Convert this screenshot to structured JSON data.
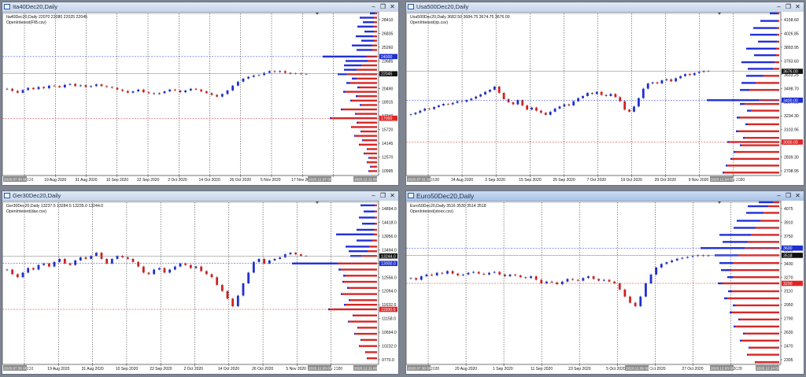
{
  "colors": {
    "bull": "#1f2fd1",
    "bear": "#d22020",
    "grid": "#222222",
    "wick": "#444444",
    "bid": "#2230d8",
    "ask": "#d62828"
  },
  "windows": [
    {
      "key": "ita",
      "title": "Ita40Dec20,Daily",
      "ohlc": "Ita40Dec20,Daily  22070 22080 22025 22045",
      "oi": "OpenInterest(FIB.csv)",
      "yaxis": [
        "28410",
        "26835",
        "25260",
        "23685",
        "22110",
        "20490",
        "18915",
        "17340",
        "15720",
        "14145",
        "12570",
        "10995"
      ],
      "marks": [
        {
          "text": "24000",
          "v": 24000,
          "type": "blue"
        },
        {
          "text": "22045",
          "v": 22045,
          "type": "black"
        },
        {
          "text": "17000",
          "v": 17000,
          "type": "red"
        }
      ],
      "xaxis": [
        "7 Aug 2020",
        "19 Aug 2020",
        "31 Aug 2020",
        "10 Sep 2020",
        "22 Sep 2020",
        "2 Oct 2020",
        "14 Oct 2020",
        "26 Oct 2020",
        "5 Nov 2020",
        "17 Nov 2020",
        "2"
      ],
      "axis_time_left": "2020.07.30 00:00",
      "axis_time_right": "2020.12.07 00:00",
      "axis_time_right2": "2020.12.11 00:00",
      "ylim": [
        10500,
        28900
      ],
      "closes": [
        20350,
        20100,
        19900,
        20200,
        20450,
        20300,
        20550,
        20400,
        20700,
        20650,
        20500,
        20800,
        20900,
        20650,
        20750,
        20550,
        20650,
        20850,
        20650,
        20550,
        20450,
        20250,
        20100,
        19900,
        20050,
        20250,
        19950,
        19850,
        19750,
        19850,
        20050,
        20250,
        20150,
        19950,
        20150,
        20350,
        20250,
        20050,
        19850,
        19650,
        19450,
        19750,
        20150,
        20700,
        21150,
        21500,
        21700,
        21850,
        21900,
        22150,
        22350,
        22250,
        22350,
        22150,
        22050,
        22100,
        22000,
        22045
      ],
      "oi_bars": [
        {
          "v": 28900,
          "bid": 6,
          "ask": 3
        },
        {
          "v": 28410,
          "bid": 18,
          "ask": 4
        },
        {
          "v": 27900,
          "bid": 14,
          "ask": 4
        },
        {
          "v": 27400,
          "bid": 20,
          "ask": 5
        },
        {
          "v": 26835,
          "bid": 12,
          "ask": 4
        },
        {
          "v": 26300,
          "bid": 22,
          "ask": 5
        },
        {
          "v": 25800,
          "bid": 16,
          "ask": 4
        },
        {
          "v": 25260,
          "bid": 26,
          "ask": 6
        },
        {
          "v": 24750,
          "bid": 20,
          "ask": 6
        },
        {
          "v": 24000,
          "bid": 55,
          "ask": 14
        },
        {
          "v": 23500,
          "bid": 28,
          "ask": 12
        },
        {
          "v": 23000,
          "bid": 22,
          "ask": 20
        },
        {
          "v": 22500,
          "bid": 16,
          "ask": 26
        },
        {
          "v": 22000,
          "bid": 12,
          "ask": 38
        },
        {
          "v": 21500,
          "bid": 6,
          "ask": 26
        },
        {
          "v": 21000,
          "bid": 5,
          "ask": 34
        },
        {
          "v": 20500,
          "bid": 3,
          "ask": 22
        },
        {
          "v": 20000,
          "bid": 3,
          "ask": 40
        },
        {
          "v": 19500,
          "bid": 3,
          "ask": 24
        },
        {
          "v": 19000,
          "bid": 2,
          "ask": 32
        },
        {
          "v": 18500,
          "bid": 2,
          "ask": 20
        },
        {
          "v": 18000,
          "bid": 2,
          "ask": 44
        },
        {
          "v": 17500,
          "bid": 2,
          "ask": 26
        },
        {
          "v": 17000,
          "bid": 2,
          "ask": 58
        },
        {
          "v": 16500,
          "bid": 2,
          "ask": 24
        },
        {
          "v": 16000,
          "bid": 1,
          "ask": 32
        },
        {
          "v": 15500,
          "bid": 1,
          "ask": 20
        },
        {
          "v": 15000,
          "bid": 1,
          "ask": 28
        },
        {
          "v": 14500,
          "bid": 1,
          "ask": 18
        },
        {
          "v": 14000,
          "bid": 1,
          "ask": 22
        },
        {
          "v": 13500,
          "bid": 1,
          "ask": 12
        },
        {
          "v": 13000,
          "bid": 1,
          "ask": 16
        },
        {
          "v": 12500,
          "bid": 1,
          "ask": 10
        },
        {
          "v": 12000,
          "bid": 1,
          "ask": 12
        },
        {
          "v": 11500,
          "bid": 1,
          "ask": 8
        },
        {
          "v": 11000,
          "bid": 1,
          "ask": 10
        }
      ]
    },
    {
      "key": "usa",
      "title": "Usa500Dec20,Daily",
      "ohlc": "Usa500Dec20,Daily  3682.50 3684.75 3674.75 3676.00",
      "oi": "OpenInterest(sp.csv)",
      "yaxis": [
        "4158.60",
        "4026.85",
        "3893.95",
        "3763.60",
        "3633.25",
        "3498.70",
        "3364.00",
        "3234.30",
        "3103.95",
        "2969.60",
        "2839.30",
        "2708.95"
      ],
      "marks": [
        {
          "text": "3676.00",
          "v": 3676,
          "type": "black"
        },
        {
          "text": "3400.00",
          "v": 3400,
          "type": "blue"
        },
        {
          "text": "3000.00",
          "v": 3000,
          "type": "red"
        }
      ],
      "xaxis": [
        "12 Aug 2020",
        "24 Aug 2020",
        "3 Sep 2020",
        "15 Sep 2020",
        "25 Sep 2020",
        "7 Oct 2020",
        "19 Oct 2020",
        "29 Oct 2020",
        "9 Nov 2020",
        "19 Nov 2020"
      ],
      "axis_time_left": "2020.07.31 00:00",
      "axis_time_right": "2020.12.04 00:00",
      "ylim": [
        2680,
        4230
      ],
      "closes": [
        3265,
        3280,
        3300,
        3320,
        3315,
        3335,
        3350,
        3365,
        3360,
        3375,
        3390,
        3385,
        3400,
        3415,
        3435,
        3455,
        3480,
        3500,
        3530,
        3470,
        3410,
        3380,
        3360,
        3400,
        3350,
        3310,
        3330,
        3300,
        3280,
        3260,
        3290,
        3320,
        3340,
        3360,
        3350,
        3390,
        3420,
        3440,
        3470,
        3460,
        3480,
        3450,
        3440,
        3460,
        3430,
        3390,
        3310,
        3290,
        3340,
        3420,
        3510,
        3560,
        3570,
        3560,
        3590,
        3600,
        3580,
        3610,
        3630,
        3650,
        3640,
        3660,
        3670,
        3680,
        3676
      ],
      "oi_bars": [
        {
          "v": 4230,
          "bid": 10,
          "ask": 2
        },
        {
          "v": 4158,
          "bid": 22,
          "ask": 2
        },
        {
          "v": 4090,
          "bid": 30,
          "ask": 3
        },
        {
          "v": 4026,
          "bid": 34,
          "ask": 3
        },
        {
          "v": 3960,
          "bid": 24,
          "ask": 3
        },
        {
          "v": 3893,
          "bid": 38,
          "ask": 4
        },
        {
          "v": 3830,
          "bid": 28,
          "ask": 4
        },
        {
          "v": 3763,
          "bid": 42,
          "ask": 6
        },
        {
          "v": 3700,
          "bid": 32,
          "ask": 8
        },
        {
          "v": 3633,
          "bid": 22,
          "ask": 20
        },
        {
          "v": 3565,
          "bid": 18,
          "ask": 30
        },
        {
          "v": 3498,
          "bid": 12,
          "ask": 38
        },
        {
          "v": 3400,
          "bid": 66,
          "ask": 26
        },
        {
          "v": 3364,
          "bid": 6,
          "ask": 44
        },
        {
          "v": 3300,
          "bid": 5,
          "ask": 36
        },
        {
          "v": 3234,
          "bid": 4,
          "ask": 50
        },
        {
          "v": 3170,
          "bid": 3,
          "ask": 40
        },
        {
          "v": 3103,
          "bid": 3,
          "ask": 52
        },
        {
          "v": 3040,
          "bid": 2,
          "ask": 44
        },
        {
          "v": 3000,
          "bid": 2,
          "ask": 64
        },
        {
          "v": 2969,
          "bid": 2,
          "ask": 48
        },
        {
          "v": 2905,
          "bid": 2,
          "ask": 56
        },
        {
          "v": 2839,
          "bid": 2,
          "ask": 60
        },
        {
          "v": 2775,
          "bid": 2,
          "ask": 66
        },
        {
          "v": 2708,
          "bid": 2,
          "ask": 70
        }
      ]
    },
    {
      "key": "ger",
      "title": "Ger30Dec20,Daily",
      "ohlc": "Ger30Dec20,Daily  13237.5 13284.5 13235.0 13244.0",
      "oi": "OpenInterest(dax.csv)",
      "yaxis": [
        "14894.0",
        "14418.0",
        "13956.0",
        "13494.0",
        "13032.0",
        "12556.0",
        "12094.0",
        "11632.0",
        "11158.0",
        "10694.0",
        "10232.0",
        "9770.0"
      ],
      "marks": [
        {
          "text": "13244.0",
          "v": 13244,
          "type": "black"
        },
        {
          "text": "13000.0",
          "v": 13000,
          "type": "blue"
        },
        {
          "text": "11500.0",
          "v": 11500,
          "type": "red"
        }
      ],
      "xaxis": [
        "7 Aug 2020",
        "19 Aug 2020",
        "31 Aug 2020",
        "10 Sep 2020",
        "22 Sep 2020",
        "2 Oct 2020",
        "14 Oct 2020",
        "26 Oct 2020",
        "5 Nov 2020",
        "17 Nov 2020"
      ],
      "axis_time_left": "2020.07.30 00:00",
      "axis_time_right": "2020.12.03 00:00",
      "axis_time_right2": "2020.12.11 00:00",
      "ylim": [
        9700,
        15000
      ],
      "closes": [
        12800,
        12650,
        12550,
        12700,
        12850,
        12800,
        12950,
        13000,
        12900,
        13050,
        13150,
        13000,
        12950,
        13100,
        13200,
        13150,
        13250,
        13350,
        13150,
        13000,
        13150,
        13250,
        13200,
        13150,
        13050,
        12900,
        12700,
        12650,
        12800,
        12850,
        12700,
        12800,
        12900,
        13000,
        12950,
        12850,
        12900,
        12750,
        12650,
        12550,
        12300,
        12100,
        11850,
        11600,
        11950,
        12350,
        12700,
        13050,
        13150,
        13000,
        13100,
        13150,
        13200,
        13300,
        13350,
        13300,
        13250,
        13244
      ],
      "oi_bars": [
        {
          "v": 14900,
          "bid": 18,
          "ask": 3
        },
        {
          "v": 14700,
          "bid": 14,
          "ask": 3
        },
        {
          "v": 14500,
          "bid": 20,
          "ask": 3
        },
        {
          "v": 14300,
          "bid": 16,
          "ask": 3
        },
        {
          "v": 14100,
          "bid": 22,
          "ask": 4
        },
        {
          "v": 13950,
          "bid": 48,
          "ask": 4
        },
        {
          "v": 13750,
          "bid": 20,
          "ask": 6
        },
        {
          "v": 13550,
          "bid": 30,
          "ask": 10
        },
        {
          "v": 13400,
          "bid": 24,
          "ask": 12
        },
        {
          "v": 13244,
          "bid": 14,
          "ask": 20
        },
        {
          "v": 13000,
          "bid": 58,
          "ask": 50
        },
        {
          "v": 12800,
          "bid": 3,
          "ask": 46
        },
        {
          "v": 12600,
          "bid": 3,
          "ask": 40
        },
        {
          "v": 12400,
          "bid": 2,
          "ask": 42
        },
        {
          "v": 12200,
          "bid": 2,
          "ask": 36
        },
        {
          "v": 12000,
          "bid": 2,
          "ask": 44
        },
        {
          "v": 11800,
          "bid": 2,
          "ask": 34
        },
        {
          "v": 11650,
          "bid": 2,
          "ask": 40
        },
        {
          "v": 11500,
          "bid": 2,
          "ask": 60
        },
        {
          "v": 11300,
          "bid": 1,
          "ask": 30
        },
        {
          "v": 11100,
          "bid": 1,
          "ask": 36
        },
        {
          "v": 10900,
          "bid": 1,
          "ask": 24
        },
        {
          "v": 10700,
          "bid": 1,
          "ask": 28
        },
        {
          "v": 10500,
          "bid": 1,
          "ask": 20
        },
        {
          "v": 10300,
          "bid": 1,
          "ask": 22
        },
        {
          "v": 10100,
          "bid": 1,
          "ask": 14
        },
        {
          "v": 9900,
          "bid": 1,
          "ask": 12
        }
      ]
    },
    {
      "key": "euro",
      "title": "Euro50Dec20,Daily",
      "ohlc": "Euro50Dec20,Daily  3516 3530 3514 3518",
      "oi": "OpenInterest(stoxx.csv)",
      "yaxis": [
        "4075",
        "3910",
        "3750",
        "3590",
        "3430",
        "3270",
        "3110",
        "2950",
        "2790",
        "2630",
        "2470",
        "2305"
      ],
      "marks": [
        {
          "text": "3600",
          "v": 3600,
          "type": "blue"
        },
        {
          "text": "3518",
          "v": 3518,
          "type": "black"
        },
        {
          "text": "3200",
          "v": 3200,
          "type": "red"
        }
      ],
      "xaxis": [
        "10 Aug 2020",
        "20 Aug 2020",
        "1 Sep 2020",
        "11 Sep 2020",
        "23 Sep 2020",
        "5 Oct 2020",
        "15 Oct 2020",
        "27 Oct 2020",
        "18 Nov 2020"
      ],
      "axis_time_left": "2020.07.30 00:00",
      "axis_time_mid": "2020.11.09 00:00",
      "axis_time_right": "2020.12.03 00:00",
      "axis_time_right2": "2020.12.14 00:00",
      "ylim": [
        2280,
        4120
      ],
      "closes": [
        3260,
        3240,
        3280,
        3300,
        3290,
        3320,
        3310,
        3340,
        3310,
        3290,
        3300,
        3320,
        3330,
        3310,
        3300,
        3320,
        3330,
        3300,
        3280,
        3300,
        3290,
        3270,
        3260,
        3280,
        3240,
        3200,
        3220,
        3210,
        3190,
        3220,
        3250,
        3240,
        3230,
        3260,
        3280,
        3250,
        3230,
        3240,
        3220,
        3200,
        3130,
        3050,
        2980,
        2940,
        3050,
        3200,
        3300,
        3380,
        3420,
        3440,
        3460,
        3480,
        3490,
        3500,
        3510,
        3520,
        3510,
        3518
      ],
      "oi_bars": [
        {
          "v": 4120,
          "bid": 18,
          "ask": 8
        },
        {
          "v": 4075,
          "bid": 26,
          "ask": 14
        },
        {
          "v": 4000,
          "bid": 22,
          "ask": 20
        },
        {
          "v": 3910,
          "bid": 30,
          "ask": 24
        },
        {
          "v": 3830,
          "bid": 28,
          "ask": 30
        },
        {
          "v": 3750,
          "bid": 40,
          "ask": 36
        },
        {
          "v": 3670,
          "bid": 32,
          "ask": 40
        },
        {
          "v": 3600,
          "bid": 56,
          "ask": 44
        },
        {
          "v": 3518,
          "bid": 30,
          "ask": 52
        },
        {
          "v": 3430,
          "bid": 18,
          "ask": 58
        },
        {
          "v": 3350,
          "bid": 12,
          "ask": 62
        },
        {
          "v": 3270,
          "bid": 8,
          "ask": 58
        },
        {
          "v": 3200,
          "bid": 6,
          "ask": 72
        },
        {
          "v": 3110,
          "bid": 5,
          "ask": 60
        },
        {
          "v": 3030,
          "bid": 4,
          "ask": 66
        },
        {
          "v": 2950,
          "bid": 3,
          "ask": 56
        },
        {
          "v": 2870,
          "bid": 3,
          "ask": 60
        },
        {
          "v": 2790,
          "bid": 2,
          "ask": 50
        },
        {
          "v": 2710,
          "bid": 2,
          "ask": 56
        },
        {
          "v": 2630,
          "bid": 2,
          "ask": 44
        },
        {
          "v": 2550,
          "bid": 2,
          "ask": 48
        },
        {
          "v": 2470,
          "bid": 1,
          "ask": 38
        },
        {
          "v": 2390,
          "bid": 1,
          "ask": 40
        },
        {
          "v": 2305,
          "bid": 1,
          "ask": 30
        }
      ]
    }
  ]
}
